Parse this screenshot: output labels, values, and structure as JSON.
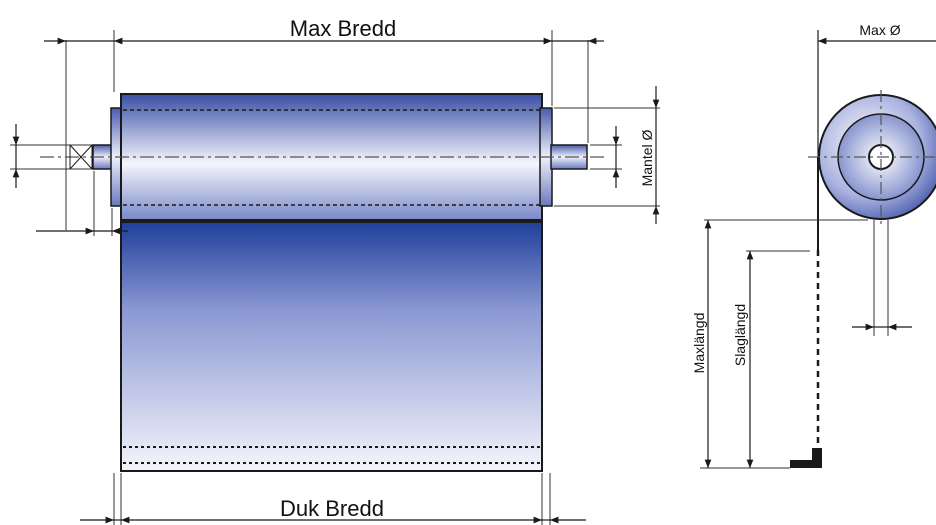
{
  "labels": {
    "max_width": "Max Bredd",
    "fabric_width": "Duk Bredd",
    "max_diameter": "Max Ø",
    "tube_diameter": "Mantel Ø",
    "max_length": "Maxlängd",
    "stroke_length": "Slaglängd"
  },
  "colors": {
    "roller_dark": "#3a4fa5",
    "roller_light": "#f2f3fb",
    "fabric_top": "#1f3f9a",
    "fabric_bottom": "#f4f5fb",
    "line": "#1a1a1a"
  }
}
